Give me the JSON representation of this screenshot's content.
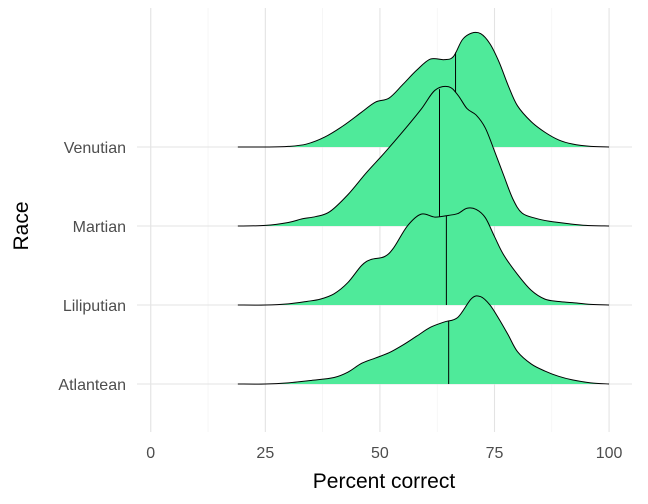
{
  "chart_data": {
    "type": "ridgeline",
    "title": "",
    "xlabel": "Percent correct",
    "ylabel": "Race",
    "xlim": [
      -3,
      105
    ],
    "x_ticks": [
      0,
      25,
      50,
      75,
      100
    ],
    "x_tick_labels": [
      "0",
      "25",
      "50",
      "75",
      "100"
    ],
    "categories": [
      "Atlantean",
      "Liliputian",
      "Martian",
      "Venutian"
    ],
    "fill_color": "#4fea9a",
    "outline_color": "#000000",
    "grid": true,
    "legend": "none",
    "series": [
      {
        "name": "Atlantean",
        "median": 65,
        "points": [
          [
            19,
            0.0
          ],
          [
            25,
            0.0
          ],
          [
            30,
            0.02
          ],
          [
            35,
            0.06
          ],
          [
            40,
            0.11
          ],
          [
            43,
            0.2
          ],
          [
            46,
            0.35
          ],
          [
            49,
            0.44
          ],
          [
            52,
            0.53
          ],
          [
            55,
            0.66
          ],
          [
            58,
            0.81
          ],
          [
            61,
            0.96
          ],
          [
            64,
            1.05
          ],
          [
            67,
            1.13
          ],
          [
            70,
            1.45
          ],
          [
            72,
            1.48
          ],
          [
            74,
            1.34
          ],
          [
            76,
            1.1
          ],
          [
            78,
            0.83
          ],
          [
            80,
            0.55
          ],
          [
            83,
            0.34
          ],
          [
            86,
            0.22
          ],
          [
            89,
            0.13
          ],
          [
            92,
            0.07
          ],
          [
            96,
            0.02
          ],
          [
            100,
            0.0
          ]
        ]
      },
      {
        "name": "Liliputian",
        "median": 64.5,
        "points": [
          [
            19,
            0.0
          ],
          [
            25,
            0.0
          ],
          [
            30,
            0.02
          ],
          [
            34,
            0.06
          ],
          [
            37,
            0.1
          ],
          [
            40,
            0.19
          ],
          [
            43,
            0.38
          ],
          [
            46,
            0.67
          ],
          [
            48,
            0.77
          ],
          [
            51,
            0.82
          ],
          [
            53,
            0.97
          ],
          [
            56,
            1.34
          ],
          [
            59,
            1.54
          ],
          [
            62,
            1.49
          ],
          [
            65,
            1.52
          ],
          [
            67,
            1.55
          ],
          [
            69,
            1.64
          ],
          [
            71,
            1.62
          ],
          [
            73,
            1.48
          ],
          [
            75,
            1.16
          ],
          [
            77,
            0.85
          ],
          [
            80,
            0.52
          ],
          [
            83,
            0.25
          ],
          [
            86,
            0.1
          ],
          [
            89,
            0.06
          ],
          [
            92,
            0.04
          ],
          [
            96,
            0.01
          ],
          [
            100,
            0.0
          ]
        ]
      },
      {
        "name": "Martian",
        "median": 63,
        "points": [
          [
            19,
            0.0
          ],
          [
            25,
            0.01
          ],
          [
            30,
            0.06
          ],
          [
            33,
            0.12
          ],
          [
            36,
            0.16
          ],
          [
            39,
            0.24
          ],
          [
            43,
            0.53
          ],
          [
            47,
            0.9
          ],
          [
            51,
            1.24
          ],
          [
            55,
            1.6
          ],
          [
            59,
            1.98
          ],
          [
            62,
            2.3
          ],
          [
            65,
            2.36
          ],
          [
            67,
            2.22
          ],
          [
            69,
            1.99
          ],
          [
            71,
            1.88
          ],
          [
            73,
            1.66
          ],
          [
            75,
            1.27
          ],
          [
            77,
            0.86
          ],
          [
            79,
            0.46
          ],
          [
            81,
            0.22
          ],
          [
            84,
            0.13
          ],
          [
            87,
            0.08
          ],
          [
            91,
            0.04
          ],
          [
            95,
            0.01
          ],
          [
            100,
            0.0
          ]
        ]
      },
      {
        "name": "Venutian",
        "median": 66.5,
        "points": [
          [
            19,
            0.0
          ],
          [
            25,
            0.0
          ],
          [
            30,
            0.01
          ],
          [
            34,
            0.05
          ],
          [
            38,
            0.17
          ],
          [
            42,
            0.36
          ],
          [
            46,
            0.59
          ],
          [
            49,
            0.76
          ],
          [
            52,
            0.83
          ],
          [
            55,
            1.06
          ],
          [
            58,
            1.3
          ],
          [
            61,
            1.49
          ],
          [
            64,
            1.48
          ],
          [
            66,
            1.53
          ],
          [
            68,
            1.82
          ],
          [
            70,
            1.93
          ],
          [
            72,
            1.92
          ],
          [
            74,
            1.75
          ],
          [
            76,
            1.44
          ],
          [
            78,
            1.04
          ],
          [
            80,
            0.7
          ],
          [
            83,
            0.43
          ],
          [
            86,
            0.25
          ],
          [
            89,
            0.12
          ],
          [
            92,
            0.05
          ],
          [
            96,
            0.01
          ],
          [
            100,
            0.0
          ]
        ]
      }
    ]
  }
}
